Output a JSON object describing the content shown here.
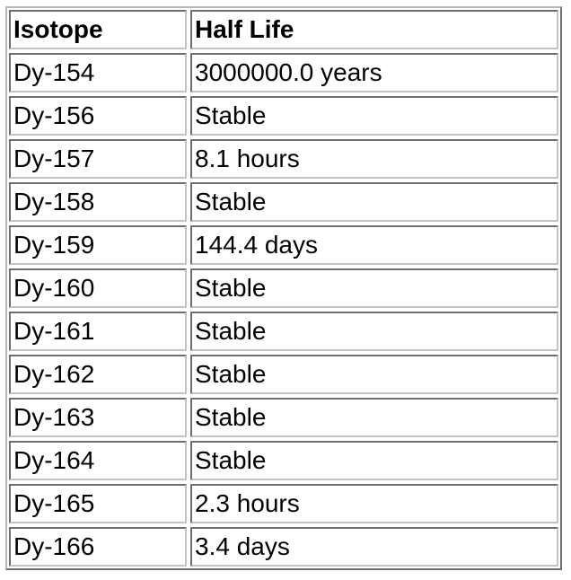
{
  "table": {
    "headers": [
      "Isotope",
      "Half Life"
    ],
    "rows": [
      [
        "Dy-154",
        "3000000.0 years"
      ],
      [
        "Dy-156",
        "Stable"
      ],
      [
        "Dy-157",
        "8.1 hours"
      ],
      [
        "Dy-158",
        "Stable"
      ],
      [
        "Dy-159",
        "144.4 days"
      ],
      [
        "Dy-160",
        "Stable"
      ],
      [
        "Dy-161",
        "Stable"
      ],
      [
        "Dy-162",
        "Stable"
      ],
      [
        "Dy-163",
        "Stable"
      ],
      [
        "Dy-164",
        "Stable"
      ],
      [
        "Dy-165",
        "2.3 hours"
      ],
      [
        "Dy-166",
        "3.4 days"
      ]
    ]
  }
}
